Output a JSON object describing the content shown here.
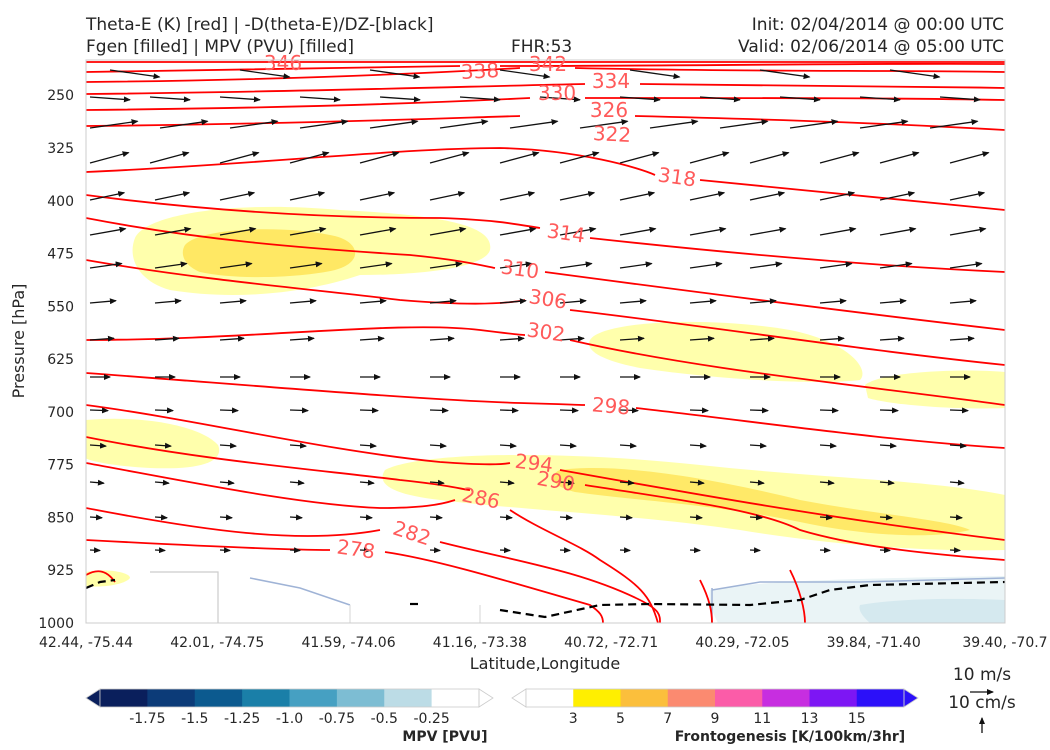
{
  "header": {
    "title_line1": "Theta-E (K) [red] | -D(theta-E)/DZ-[black]",
    "title_line2": "Fgen [filled] | MPV (PVU) [filled]",
    "fhr": "FHR:53",
    "init": "Init: 02/04/2014 @ 00:00 UTC",
    "valid": "Valid: 02/06/2014 @ 05:00 UTC"
  },
  "chart_data": {
    "type": "cross-section",
    "xlabel": "Latitude,Longitude",
    "ylabel": "Pressure [hPa]",
    "x_ticks": [
      "42.44, -75.44",
      "42.01, -74.75",
      "41.59, -74.06",
      "41.16, -73.38",
      "40.72, -72.71",
      "40.29, -72.05",
      "39.84, -71.40",
      "39.40, -70.7"
    ],
    "y_ticks": [
      250,
      325,
      400,
      475,
      550,
      625,
      700,
      775,
      850,
      925,
      1000
    ],
    "ylim": [
      1000,
      200
    ],
    "y_scale": "linear-inverted",
    "theta_e_contour_labels": [
      "346",
      "342",
      "338",
      "334",
      "330",
      "326",
      "322",
      "318",
      "314",
      "310",
      "306",
      "302",
      "298",
      "294",
      "290",
      "286",
      "282",
      "278"
    ],
    "theta_e_color": "#ff0000",
    "vector_color": "#000000",
    "mpv_colorbar": {
      "title": "MPV [PVU]",
      "ticks": [
        "-1.75",
        "-1.5",
        "-1.25",
        "-1.0",
        "-0.75",
        "-0.5",
        "-0.25"
      ],
      "colors": [
        "#0a1f5c",
        "#0c3b78",
        "#0c5a8f",
        "#1a7fa8",
        "#46a0c2",
        "#7dbdd3",
        "#bcdce6",
        "#ffffff"
      ]
    },
    "fgen_colorbar": {
      "title": "Frontogenesis [K/100km/3hr]",
      "ticks": [
        "3",
        "5",
        "7",
        "9",
        "11",
        "13",
        "15"
      ],
      "colors": [
        "#ffffff",
        "#ffef00",
        "#fbbf3c",
        "#fb8a70",
        "#fb5ca8",
        "#c72ee0",
        "#7d16f4",
        "#2c10f9"
      ]
    },
    "vector_key": {
      "horizontal": "10 m/s",
      "vertical": "10 cm/s"
    }
  }
}
